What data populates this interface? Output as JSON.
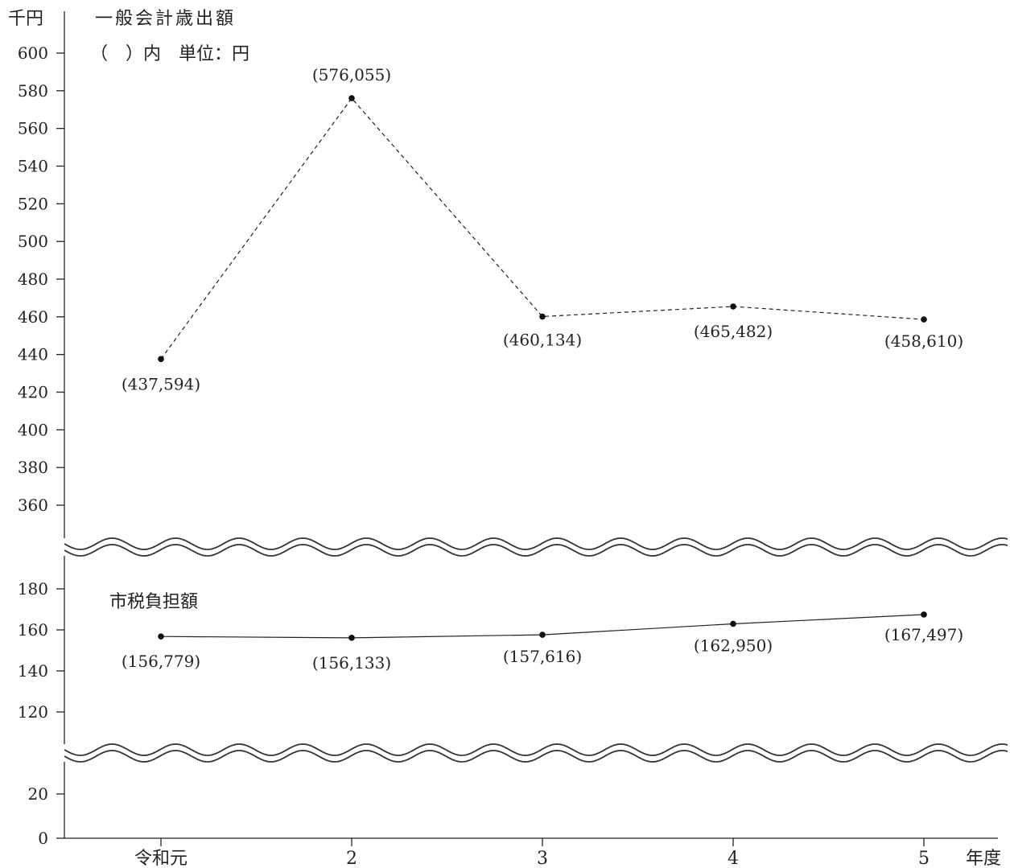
{
  "chart_data": {
    "type": "line",
    "y_unit": "千円",
    "x_unit": "年度",
    "categories": [
      "令和元",
      "2",
      "3",
      "4",
      "5"
    ],
    "title": "一般会計歳出額",
    "note": "（　）内　単位：円",
    "y_ticks": [
      {
        "value": 0,
        "label": "0"
      },
      {
        "value": 20,
        "label": "20"
      },
      {
        "value": 120,
        "label": "120"
      },
      {
        "value": 140,
        "label": "140"
      },
      {
        "value": 160,
        "label": "160"
      },
      {
        "value": 180,
        "label": "180"
      },
      {
        "value": 360,
        "label": "360"
      },
      {
        "value": 380,
        "label": "380"
      },
      {
        "value": 400,
        "label": "400"
      },
      {
        "value": 420,
        "label": "420"
      },
      {
        "value": 440,
        "label": "440"
      },
      {
        "value": 460,
        "label": "460"
      },
      {
        "value": 480,
        "label": "480"
      },
      {
        "value": 500,
        "label": "500"
      },
      {
        "value": 520,
        "label": "520"
      },
      {
        "value": 540,
        "label": "540"
      },
      {
        "value": 560,
        "label": "560"
      },
      {
        "value": 580,
        "label": "580"
      },
      {
        "value": 600,
        "label": "600"
      }
    ],
    "axis_breaks": [
      [
        20,
        120
      ],
      [
        180,
        360
      ]
    ],
    "series": [
      {
        "name": "",
        "line_style": "dashed",
        "values": [
          437.594,
          576.055,
          460.134,
          465.482,
          458.61
        ],
        "labels": [
          "(437,594)",
          "(576,055)",
          "(460,134)",
          "(465,482)",
          "(458,610)"
        ]
      },
      {
        "name": "市税負担額",
        "line_style": "solid",
        "values": [
          156.779,
          156.133,
          157.616,
          162.95,
          167.497
        ],
        "labels": [
          "(156,779)",
          "(156,133)",
          "(157,616)",
          "(162,950)",
          "(167,497)"
        ]
      }
    ],
    "grid": false
  }
}
